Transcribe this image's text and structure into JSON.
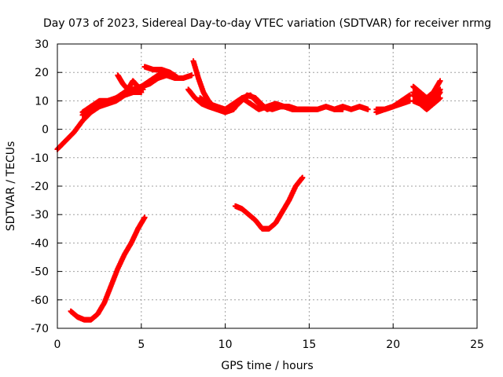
{
  "chart_data": {
    "type": "scatter",
    "title": "Day 073 of 2023, Sidereal Day-to-day VTEC variation (SDTVAR) for receiver nrmg",
    "xlabel": "GPS time / hours",
    "ylabel": "SDTVAR / TECUs",
    "xlim": [
      0,
      25
    ],
    "ylim": [
      -70,
      30
    ],
    "xticks": [
      0,
      5,
      10,
      15,
      20,
      25
    ],
    "yticks": [
      -70,
      -60,
      -50,
      -40,
      -30,
      -20,
      -10,
      0,
      10,
      20,
      30
    ],
    "grid": true,
    "marker": "+",
    "color": "#ff0000",
    "series": [
      {
        "name": "main-trace-a",
        "x": [
          0.0,
          0.5,
          1.0,
          1.5,
          2.0,
          2.5,
          3.0,
          3.5,
          4.0,
          4.5,
          5.0,
          5.5,
          6.0,
          6.5,
          7.0,
          7.5,
          8.0
        ],
        "y": [
          -7,
          -4,
          -1,
          3,
          6,
          8,
          9,
          11,
          13,
          14,
          15,
          16,
          18,
          19,
          18,
          18,
          19
        ]
      },
      {
        "name": "main-trace-b",
        "x": [
          1.5,
          2.0,
          2.5,
          3.0,
          3.5,
          4.0,
          4.5,
          5.0,
          5.5,
          6.0,
          6.5,
          7.0
        ],
        "y": [
          5,
          8,
          10,
          10,
          11,
          12,
          14,
          15,
          17,
          19,
          20,
          19
        ]
      },
      {
        "name": "main-trace-c",
        "x": [
          1.5,
          2.0,
          2.5,
          3.0,
          3.5,
          4.0,
          4.5,
          5.0
        ],
        "y": [
          6,
          8,
          9,
          9,
          10,
          12,
          13,
          13
        ]
      },
      {
        "name": "peak-a",
        "x": [
          3.6,
          3.9,
          4.2,
          4.5,
          4.8,
          5.1
        ],
        "y": [
          19,
          16,
          14,
          17,
          15,
          14
        ]
      },
      {
        "name": "peak-b",
        "x": [
          5.2,
          5.7,
          6.2,
          6.7,
          7.2
        ],
        "y": [
          22,
          21,
          21,
          20,
          18
        ]
      },
      {
        "name": "post-peak-a",
        "x": [
          8.1,
          8.4,
          8.7,
          9.0,
          9.3,
          9.7,
          10.0
        ],
        "y": [
          24,
          18,
          13,
          10,
          8,
          7,
          6
        ]
      },
      {
        "name": "post-peak-b",
        "x": [
          7.8,
          8.2,
          8.6,
          9.0,
          9.5,
          10.0
        ],
        "y": [
          14,
          11,
          9,
          8,
          7,
          6
        ]
      },
      {
        "name": "post-peak-c",
        "x": [
          8.5,
          9.0,
          9.5,
          10.0
        ],
        "y": [
          11,
          9,
          8,
          7
        ]
      },
      {
        "name": "oscillation-a",
        "x": [
          10.0,
          10.5,
          11.0,
          11.5,
          12.0,
          12.5,
          13.0,
          13.5,
          14.0,
          14.5,
          15.0
        ],
        "y": [
          6,
          7,
          11,
          12,
          9,
          7,
          8,
          8,
          7,
          7,
          7
        ]
      },
      {
        "name": "oscillation-b",
        "x": [
          10.0,
          10.5,
          11.0,
          11.5,
          12.0,
          12.5,
          13.0,
          13.5,
          14.0,
          14.5,
          15.0
        ],
        "y": [
          7,
          9,
          11,
          9,
          7,
          8,
          9,
          8,
          7,
          7,
          7
        ]
      },
      {
        "name": "oscillation-c",
        "x": [
          10.3,
          10.8,
          11.3,
          11.8,
          12.3,
          12.8,
          13.3,
          13.8,
          14.3,
          14.8
        ],
        "y": [
          8,
          9,
          12,
          11,
          8,
          7,
          8,
          8,
          7,
          7
        ]
      },
      {
        "name": "late-segment-a",
        "x": [
          15.0,
          15.5,
          16.0,
          16.5,
          17.0
        ],
        "y": [
          7,
          7,
          8,
          7,
          7
        ]
      },
      {
        "name": "late-segment-b",
        "x": [
          16.5,
          17.0,
          17.5,
          18.0,
          18.5
        ],
        "y": [
          7,
          8,
          7,
          8,
          7
        ]
      },
      {
        "name": "late-segment-c",
        "x": [
          19.0,
          19.5,
          20.0,
          20.5,
          21.0
        ],
        "y": [
          6,
          7,
          8,
          10,
          12
        ]
      },
      {
        "name": "late-segment-d",
        "x": [
          19.0,
          19.5,
          20.0,
          20.5,
          21.0
        ],
        "y": [
          7,
          7,
          8,
          9,
          10
        ]
      },
      {
        "name": "end-segment-a",
        "x": [
          21.2,
          21.6,
          22.0,
          22.4,
          22.8
        ],
        "y": [
          15,
          13,
          11,
          13,
          17
        ]
      },
      {
        "name": "end-segment-b",
        "x": [
          21.2,
          21.6,
          22.0,
          22.4,
          22.8
        ],
        "y": [
          12,
          10,
          8,
          10,
          13
        ]
      },
      {
        "name": "end-segment-c",
        "x": [
          21.2,
          21.6,
          22.0,
          22.4,
          22.8
        ],
        "y": [
          13,
          11,
          9,
          11,
          14
        ]
      },
      {
        "name": "end-segment-d",
        "x": [
          21.2,
          21.6,
          22.0,
          22.4,
          22.8
        ],
        "y": [
          10,
          9,
          7,
          9,
          11
        ]
      },
      {
        "name": "low-arc-1",
        "x": [
          0.8,
          1.2,
          1.6,
          2.0,
          2.4,
          2.8,
          3.2,
          3.6,
          4.0,
          4.4,
          4.8,
          5.2
        ],
        "y": [
          -64,
          -66,
          -67,
          -67,
          -65,
          -61,
          -55,
          -49,
          -44,
          -40,
          -35,
          -31
        ]
      },
      {
        "name": "low-arc-2",
        "x": [
          10.6,
          11.0,
          11.4,
          11.8,
          12.2,
          12.6,
          13.0,
          13.4,
          13.8,
          14.2,
          14.6
        ],
        "y": [
          -27,
          -28,
          -30,
          -32,
          -35,
          -35,
          -33,
          -29,
          -25,
          -20,
          -17
        ]
      }
    ]
  }
}
